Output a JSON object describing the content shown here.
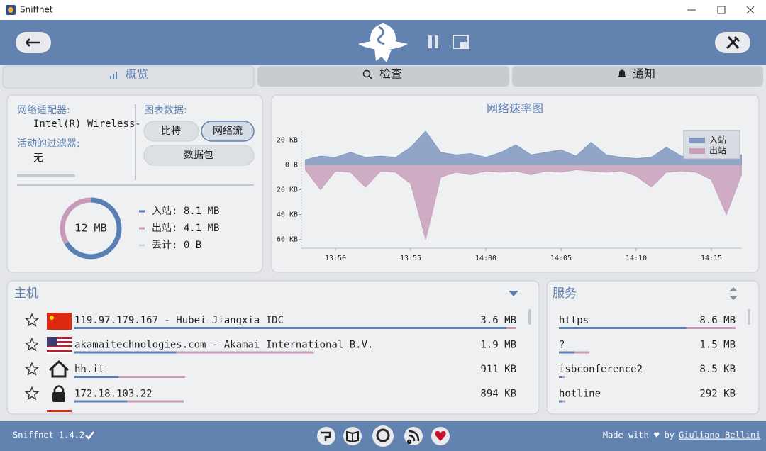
{
  "window": {
    "title": "Sniffnet"
  },
  "tabs": [
    "概览",
    "检查",
    "通知"
  ],
  "overview": {
    "adapter_label": "网络适配器:",
    "adapter": "Intel(R) Wireless-",
    "filter_label": "活动的过滤器:",
    "filter": "无",
    "chart_data_label": "图表数据:",
    "chart_options": [
      "比特",
      "网络流",
      "数据包"
    ],
    "total": "12 MB",
    "traffic": [
      {
        "text": "入站: 8.1 MB",
        "value": 8.1,
        "color": "#5b7fb2"
      },
      {
        "text": "出站: 4.1 MB",
        "value": 4.1,
        "color": "#c79ab8"
      },
      {
        "text": "丢计: 0 B",
        "value": 0,
        "color": "#d0d3d8"
      }
    ]
  },
  "chart_data": {
    "type": "area",
    "title": "网络速率图",
    "x": [
      "13:48",
      "13:49",
      "13:50",
      "13:51",
      "13:52",
      "13:53",
      "13:54",
      "13:55",
      "13:56",
      "13:57",
      "13:58",
      "13:59",
      "14:00",
      "14:01",
      "14:02",
      "14:03",
      "14:04",
      "14:05",
      "14:06",
      "14:07",
      "14:08",
      "14:09",
      "14:10",
      "14:11",
      "14:12",
      "14:13",
      "14:14",
      "14:15",
      "14:16",
      "14:17"
    ],
    "series": [
      {
        "name": "入站",
        "color": "#7f98c0",
        "values": [
          4,
          7,
          6,
          10,
          6,
          7,
          6,
          14,
          27,
          10,
          8,
          9,
          6,
          10,
          16,
          8,
          10,
          12,
          7,
          18,
          8,
          6,
          5,
          6,
          14,
          7,
          5,
          5,
          6,
          8
        ]
      },
      {
        "name": "出站",
        "color": "#c8a0bb",
        "values": [
          -4,
          -20,
          -5,
          -6,
          -18,
          -5,
          -6,
          -15,
          -60,
          -10,
          -6,
          -8,
          -5,
          -6,
          -5,
          -8,
          -5,
          -6,
          -4,
          -5,
          -6,
          -5,
          -9,
          -18,
          -6,
          -5,
          -6,
          -12,
          -40,
          -8
        ]
      }
    ],
    "xlim": [
      "13:48",
      "14:17"
    ],
    "xticks": [
      "13:50",
      "13:55",
      "14:00",
      "14:05",
      "14:10",
      "14:15"
    ],
    "ylim": [
      -67,
      27
    ],
    "yticks": [
      {
        "value": 20,
        "label": "20 KB"
      },
      {
        "value": 0,
        "label": "0 B"
      },
      {
        "value": -20,
        "label": "20 KB"
      },
      {
        "value": -40,
        "label": "40 KB"
      },
      {
        "value": -60,
        "label": "60 KB"
      }
    ],
    "legend": "upper right"
  },
  "hosts": {
    "title": "主机",
    "rows": [
      {
        "name": "119.97.179.167 - Hubei Jiangxia IDC",
        "value": "3.6 MB",
        "in": 3520,
        "out": 80
      },
      {
        "name": "akamaitechnologies.com - Akamai International B.V.",
        "value": "1.9 MB",
        "in": 830,
        "out": 1120
      },
      {
        "name": "hh.it",
        "value": "911 KB",
        "in": 360,
        "out": 540
      },
      {
        "name": "172.18.103.22",
        "value": "894 KB",
        "in": 430,
        "out": 460
      }
    ]
  },
  "services": {
    "title": "服务",
    "rows": [
      {
        "name": "https",
        "value": "8.6 MB",
        "in": 6200,
        "out": 2400
      },
      {
        "name": "?",
        "value": "1.5 MB",
        "in": 760,
        "out": 720
      },
      {
        "name": "isbconference2",
        "value": "8.5 KB",
        "in": 5,
        "out": 3.5
      },
      {
        "name": "hotline",
        "value": "292 KB",
        "in": 180,
        "out": 112
      }
    ]
  },
  "footer": {
    "version": "Sniffnet 1.4.2",
    "made_with": "Made with ♥ by",
    "author": "Giuliano Bellini"
  }
}
